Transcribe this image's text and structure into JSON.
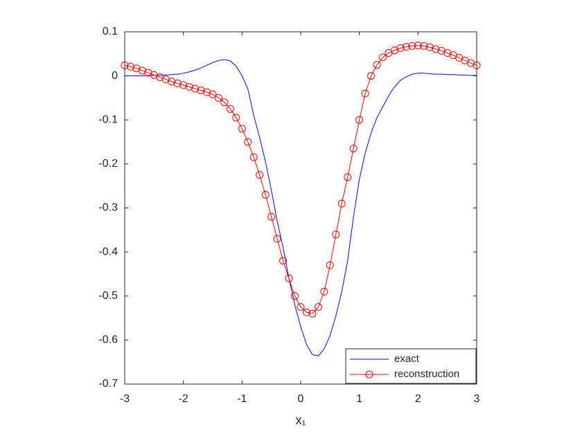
{
  "chart_data": {
    "type": "line",
    "xlabel": "x₁",
    "x": [
      -3,
      -2.9,
      -2.8,
      -2.7,
      -2.6,
      -2.5,
      -2.4,
      -2.3,
      -2.2,
      -2.1,
      -2,
      -1.9,
      -1.8,
      -1.7,
      -1.6,
      -1.5,
      -1.4,
      -1.3,
      -1.2,
      -1.1,
      -1,
      -0.9,
      -0.8,
      -0.7,
      -0.6,
      -0.5,
      -0.4,
      -0.3,
      -0.2,
      -0.1,
      0,
      0.1,
      0.2,
      0.3,
      0.4,
      0.5,
      0.6,
      0.7,
      0.8,
      0.9,
      1,
      1.1,
      1.2,
      1.3,
      1.4,
      1.5,
      1.6,
      1.7,
      1.8,
      1.9,
      2,
      2.1,
      2.2,
      2.3,
      2.4,
      2.5,
      2.6,
      2.7,
      2.8,
      2.9,
      3
    ],
    "series": [
      {
        "name": "exact",
        "color": "#0000ff",
        "marker": "none",
        "values": [
          0,
          0,
          0,
          0,
          0.001,
          0.001,
          0.001,
          0.002,
          0.003,
          0.004,
          0.006,
          0.009,
          0.013,
          0.018,
          0.024,
          0.03,
          0.035,
          0.037,
          0.034,
          0.022,
          0,
          -0.03,
          -0.09,
          -0.14,
          -0.195,
          -0.26,
          -0.33,
          -0.39,
          -0.46,
          -0.52,
          -0.57,
          -0.61,
          -0.633,
          -0.636,
          -0.62,
          -0.59,
          -0.545,
          -0.49,
          -0.42,
          -0.32,
          -0.235,
          -0.175,
          -0.13,
          -0.095,
          -0.07,
          -0.045,
          -0.025,
          -0.01,
          -0.002,
          0.004,
          0.006,
          0.006,
          0.005,
          0.004,
          0.004,
          0.003,
          0.003,
          0.002,
          0.002,
          0.001,
          0.001
        ]
      },
      {
        "name": "reconstruction",
        "color": "#ff0000",
        "marker": "circle",
        "values": [
          0.024,
          0.021,
          0.017,
          0.012,
          0.007,
          0.002,
          -0.003,
          -0.008,
          -0.013,
          -0.017,
          -0.021,
          -0.025,
          -0.029,
          -0.033,
          -0.037,
          -0.042,
          -0.05,
          -0.06,
          -0.075,
          -0.095,
          -0.12,
          -0.15,
          -0.185,
          -0.225,
          -0.27,
          -0.32,
          -0.37,
          -0.42,
          -0.46,
          -0.5,
          -0.525,
          -0.537,
          -0.54,
          -0.525,
          -0.49,
          -0.43,
          -0.36,
          -0.29,
          -0.23,
          -0.165,
          -0.1,
          -0.04,
          0,
          0.025,
          0.042,
          0.052,
          0.058,
          0.063,
          0.066,
          0.068,
          0.069,
          0.068,
          0.065,
          0.061,
          0.057,
          0.052,
          0.047,
          0.041,
          0.035,
          0.029,
          0.024
        ]
      }
    ],
    "xlim": [
      -3,
      3
    ],
    "xticks": [
      -3,
      -2,
      -1,
      0,
      1,
      2,
      3
    ],
    "ylim": [
      -0.7,
      0.1
    ],
    "yticks": [
      -0.7,
      -0.6,
      -0.5,
      -0.4,
      -0.3,
      -0.2,
      -0.1,
      0,
      0.1
    ],
    "grid": false,
    "legend": "bottom-right"
  }
}
